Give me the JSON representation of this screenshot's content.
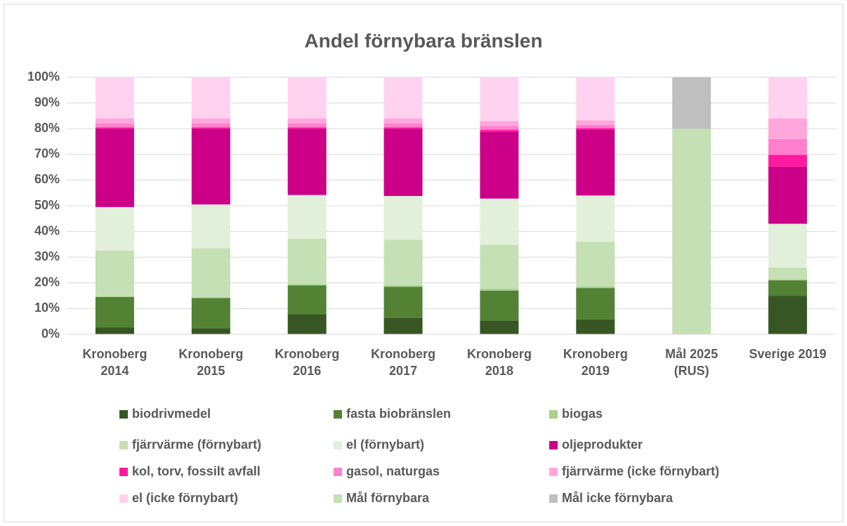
{
  "chart_data": {
    "type": "stacked_bar",
    "title": "Andel förnybara bränslen",
    "categories": [
      "Kronoberg 2014",
      "Kronoberg 2015",
      "Kronoberg 2016",
      "Kronoberg 2017",
      "Kronoberg 2018",
      "Kronoberg 2019",
      "Mål 2025 (RUS)",
      "Sverige 2019"
    ],
    "ylim": [
      0,
      100
    ],
    "yticks": [
      {
        "value": 0,
        "label": "0%"
      },
      {
        "value": 10,
        "label": "10%"
      },
      {
        "value": 20,
        "label": "20%"
      },
      {
        "value": 30,
        "label": "30%"
      },
      {
        "value": 40,
        "label": "40%"
      },
      {
        "value": 50,
        "label": "50%"
      },
      {
        "value": 60,
        "label": "60%"
      },
      {
        "value": 70,
        "label": "70%"
      },
      {
        "value": 80,
        "label": "80%"
      },
      {
        "value": 90,
        "label": "90%"
      },
      {
        "value": 100,
        "label": "100%"
      }
    ],
    "grid": true,
    "legend": "bottom",
    "series": [
      {
        "name": "biodrivmedel",
        "color": "#375623",
        "values": [
          2.7,
          2.3,
          7.8,
          6.3,
          5.3,
          5.8,
          null,
          15
        ]
      },
      {
        "name": "fasta biobränslen",
        "color": "#548235",
        "values": [
          11.8,
          11.8,
          11.2,
          12.2,
          11.7,
          12.2,
          null,
          6
        ]
      },
      {
        "name": "biogas",
        "color": "#a9d18e",
        "values": [
          0.3,
          0.3,
          0.5,
          0.5,
          0.7,
          0.6,
          null,
          0.3
        ]
      },
      {
        "name": "fjärrvärme (förnybart)",
        "color": "#c5e0b4",
        "values": [
          17.7,
          19.1,
          17.7,
          17.8,
          17.1,
          17.4,
          null,
          4.7
        ]
      },
      {
        "name": "el (förnybart)",
        "color": "#e2efda",
        "values": [
          17,
          17,
          17,
          17,
          18,
          18,
          null,
          17
        ]
      },
      {
        "name": "oljeprodukter",
        "color": "#cc0088",
        "values": [
          30.5,
          29.5,
          25.8,
          26.2,
          26,
          25.7,
          null,
          22.2
        ]
      },
      {
        "name": "kol, torv, fossilt avfall",
        "color": "#ff1aa0",
        "values": [
          0.5,
          0.5,
          0.5,
          0.5,
          0.7,
          0.5,
          null,
          4.6
        ]
      },
      {
        "name": "gasol, naturgas",
        "color": "#ff80cc",
        "values": [
          1.5,
          1.5,
          1.5,
          1.5,
          1.5,
          1.3,
          null,
          6.2
        ]
      },
      {
        "name": "fjärrvärme (icke förnybart)",
        "color": "#ffa6dd",
        "values": [
          2,
          2,
          2,
          2,
          2,
          1.7,
          null,
          8
        ]
      },
      {
        "name": "el (icke förnybart)",
        "color": "#ffd3ef",
        "values": [
          16,
          16,
          16,
          16,
          17,
          16.8,
          null,
          16
        ]
      },
      {
        "name": "Mål förnybara",
        "color": "#c5e0b4",
        "values": [
          null,
          null,
          null,
          null,
          null,
          null,
          80,
          null
        ]
      },
      {
        "name": "Mål icke förnybara",
        "color": "#bfbfbf",
        "values": [
          null,
          null,
          null,
          null,
          null,
          null,
          20,
          null
        ]
      }
    ]
  }
}
